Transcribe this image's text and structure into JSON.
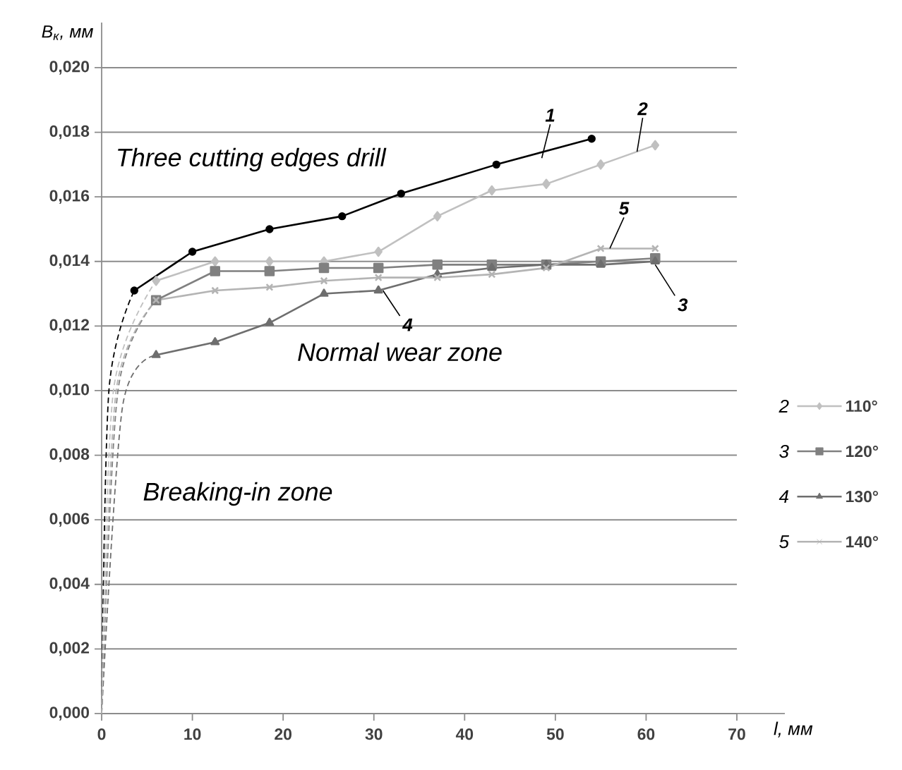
{
  "chart_data": {
    "type": "line",
    "xlabel": "l, мм",
    "ylabel": "B$_{к}$, мм",
    "xlim": [
      0,
      70
    ],
    "ylim": [
      0,
      0.02
    ],
    "xticks": [
      0,
      10,
      20,
      30,
      40,
      50,
      60,
      70
    ],
    "yticks": [
      {
        "value": 0,
        "label": "0,000"
      },
      {
        "value": 0.002,
        "label": "0,002"
      },
      {
        "value": 0.004,
        "label": "0,004"
      },
      {
        "value": 0.006,
        "label": "0,006"
      },
      {
        "value": 0.008,
        "label": "0,008"
      },
      {
        "value": 0.01,
        "label": "0,010"
      },
      {
        "value": 0.012,
        "label": "0,012"
      },
      {
        "value": 0.014,
        "label": "0,014"
      },
      {
        "value": 0.016,
        "label": "0,016"
      },
      {
        "value": 0.018,
        "label": "0,018"
      },
      {
        "value": 0.02,
        "label": "0,020"
      }
    ],
    "grid": "y",
    "legend": "right",
    "series": [
      {
        "color": "#000000",
        "marker": "circle",
        "x": [
          3.6,
          10,
          18.5,
          26.5,
          33,
          43.5,
          54
        ],
        "values": [
          0.0131,
          0.0143,
          0.015,
          0.0154,
          0.0161,
          0.017,
          0.0178
        ]
      },
      {
        "name": "110°",
        "color": "#c0c0c0",
        "marker": "diamond",
        "x": [
          6,
          12.5,
          18.5,
          24.5,
          30.5,
          37,
          43,
          49,
          55,
          61
        ],
        "values": [
          0.0134,
          0.014,
          0.014,
          0.014,
          0.0143,
          0.0154,
          0.0162,
          0.0164,
          0.017,
          0.0176
        ]
      },
      {
        "name": "120°",
        "color": "#808080",
        "marker": "square",
        "x": [
          6,
          12.5,
          18.5,
          24.5,
          30.5,
          37,
          43,
          49,
          55,
          61
        ],
        "values": [
          0.0128,
          0.0137,
          0.0137,
          0.0138,
          0.0138,
          0.0139,
          0.0139,
          0.0139,
          0.014,
          0.0141
        ]
      },
      {
        "name": "130°",
        "color": "#6e6e6e",
        "marker": "triangle",
        "x": [
          6,
          12.5,
          18.5,
          24.5,
          30.5,
          37,
          43,
          49,
          55,
          61
        ],
        "values": [
          0.0111,
          0.0115,
          0.0121,
          0.013,
          0.0131,
          0.0136,
          0.0138,
          0.0139,
          0.0139,
          0.014
        ]
      },
      {
        "name": "140°",
        "color": "#b4b4b4",
        "marker": "cross",
        "x": [
          6,
          12.5,
          18.5,
          24.5,
          30.5,
          37,
          43,
          49,
          55,
          61
        ],
        "values": [
          0.0128,
          0.0131,
          0.0132,
          0.0134,
          0.0135,
          0.0135,
          0.0136,
          0.0138,
          0.0144,
          0.0144
        ]
      },
      {
        "color": "#000000",
        "marker": "none",
        "line_style": "dashed",
        "x": [
          0,
          0.8,
          3.6
        ],
        "values": [
          0,
          0.01,
          0.0131
        ]
      },
      {
        "color": "#c0c0c0",
        "marker": "none",
        "line_style": "dashed",
        "x": [
          0,
          1.3,
          6
        ],
        "values": [
          0,
          0.01,
          0.0134
        ]
      },
      {
        "color": "#808080",
        "marker": "none",
        "line_style": "dashed",
        "x": [
          0,
          1.8,
          6
        ],
        "values": [
          0,
          0.01,
          0.0128
        ]
      },
      {
        "color": "#6e6e6e",
        "marker": "none",
        "line_style": "dashed",
        "x": [
          0,
          2.3,
          6
        ],
        "values": [
          0,
          0.0095,
          0.0111
        ]
      },
      {
        "color": "#b4b4b4",
        "marker": "none",
        "line_style": "dashed",
        "x": [
          0,
          1.6,
          6
        ],
        "values": [
          0,
          0.01,
          0.0128
        ]
      }
    ],
    "annotations": [
      "Three cutting edges drill",
      "Normal wear zone",
      "Breaking-in zone",
      {
        "text": "1",
        "x": 48.5,
        "y": 0.0172
      },
      {
        "text": "2",
        "x": 59,
        "y": 0.0174
      },
      {
        "text": "5",
        "x": 56,
        "y": 0.0144
      },
      {
        "text": "3",
        "x": 61,
        "y": 0.0139
      },
      {
        "text": "4",
        "x": 31,
        "y": 0.0131
      },
      "2",
      "3",
      "4",
      "5"
    ]
  }
}
